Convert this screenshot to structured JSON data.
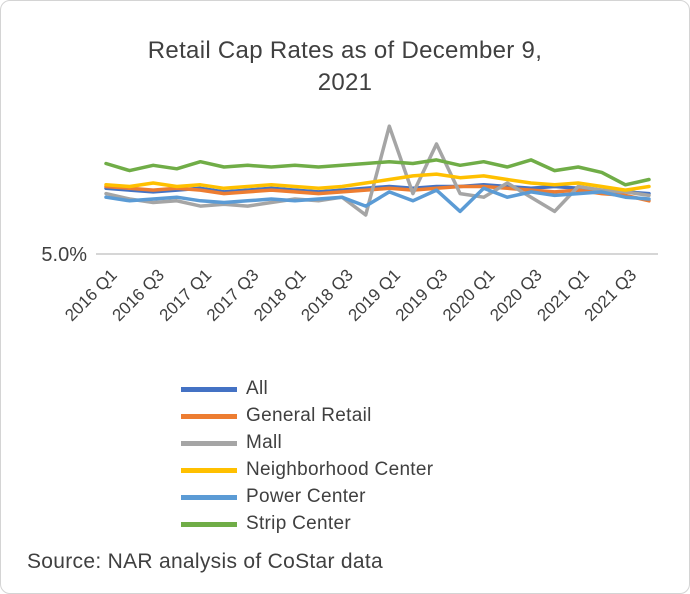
{
  "chart_data": {
    "type": "line",
    "title": "Retail Cap Rates as of December 9, 2021",
    "y_axis_label": "5.0%",
    "gridline_value": 5.0,
    "ylim": [
      5.0,
      9.0
    ],
    "grid": "single-horizontal-line",
    "legend_position": "bottom-left",
    "x_tick_labels": [
      "2016 Q1",
      "2016 Q3",
      "2017 Q1",
      "2017 Q3",
      "2018 Q1",
      "2018 Q3",
      "2019 Q1",
      "2019 Q3",
      "2020 Q1",
      "2020 Q3",
      "2021 Q1",
      "2021 Q3"
    ],
    "categories": [
      "2016 Q1",
      "2016 Q2",
      "2016 Q3",
      "2016 Q4",
      "2017 Q1",
      "2017 Q2",
      "2017 Q3",
      "2017 Q4",
      "2018 Q1",
      "2018 Q2",
      "2018 Q3",
      "2018 Q4",
      "2019 Q1",
      "2019 Q2",
      "2019 Q3",
      "2019 Q4",
      "2020 Q1",
      "2020 Q2",
      "2020 Q3",
      "2020 Q4",
      "2021 Q1",
      "2021 Q2",
      "2021 Q3",
      "2021 Q4"
    ],
    "series": [
      {
        "name": "All",
        "color": "#4472C4",
        "values": [
          6.85,
          6.8,
          6.75,
          6.8,
          6.85,
          6.75,
          6.8,
          6.85,
          6.8,
          6.75,
          6.8,
          6.85,
          6.9,
          6.85,
          6.9,
          6.9,
          6.95,
          6.9,
          6.85,
          6.9,
          6.85,
          6.8,
          6.75,
          6.7
        ]
      },
      {
        "name": "General Retail",
        "color": "#ED7D31",
        "values": [
          6.9,
          6.85,
          6.8,
          6.85,
          6.8,
          6.7,
          6.75,
          6.8,
          6.75,
          6.7,
          6.75,
          6.8,
          6.85,
          6.8,
          6.85,
          6.9,
          6.9,
          6.85,
          6.8,
          6.75,
          6.8,
          6.7,
          6.65,
          6.5
        ]
      },
      {
        "name": "Mall",
        "color": "#A5A5A5",
        "values": [
          6.7,
          6.55,
          6.45,
          6.5,
          6.35,
          6.4,
          6.35,
          6.45,
          6.55,
          6.5,
          6.6,
          6.1,
          8.6,
          6.7,
          8.1,
          6.7,
          6.6,
          7.0,
          6.6,
          6.2,
          6.9,
          6.8,
          6.75,
          6.65
        ]
      },
      {
        "name": "Neighborhood Center",
        "color": "#FFC000",
        "values": [
          6.95,
          6.9,
          7.0,
          6.9,
          6.95,
          6.85,
          6.9,
          6.95,
          6.9,
          6.85,
          6.9,
          7.0,
          7.1,
          7.2,
          7.25,
          7.15,
          7.2,
          7.1,
          7.0,
          6.95,
          7.0,
          6.9,
          6.8,
          6.9
        ]
      },
      {
        "name": "Power Center",
        "color": "#5B9BD5",
        "values": [
          6.6,
          6.5,
          6.55,
          6.6,
          6.5,
          6.45,
          6.5,
          6.55,
          6.5,
          6.55,
          6.6,
          6.35,
          6.75,
          6.5,
          6.8,
          6.2,
          6.85,
          6.6,
          6.75,
          6.65,
          6.7,
          6.75,
          6.6,
          6.55
        ]
      },
      {
        "name": "Strip Center",
        "color": "#70AD47",
        "values": [
          7.55,
          7.35,
          7.5,
          7.4,
          7.6,
          7.45,
          7.5,
          7.45,
          7.5,
          7.45,
          7.5,
          7.55,
          7.6,
          7.55,
          7.65,
          7.5,
          7.6,
          7.45,
          7.65,
          7.35,
          7.45,
          7.3,
          6.95,
          7.1
        ]
      }
    ]
  },
  "source": {
    "text": "Source: NAR analysis of CoStar data"
  }
}
